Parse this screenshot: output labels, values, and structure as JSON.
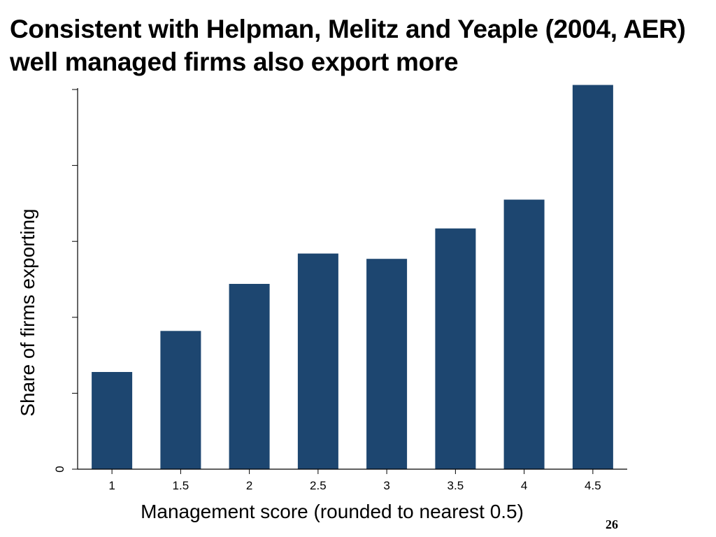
{
  "slide": {
    "title": "Consistent with Helpman, Melitz and Yeaple (2004, AER) well managed firms also export more",
    "page_number": "26"
  },
  "chart_data": {
    "type": "bar",
    "title": "",
    "xlabel": "Management score (rounded to nearest 0.5)",
    "ylabel": "Share of firms exporting",
    "categories": [
      "1",
      "1.5",
      "2",
      "2.5",
      "3",
      "3.5",
      "4",
      "4.5"
    ],
    "values": [
      0.128,
      0.182,
      0.244,
      0.284,
      0.277,
      0.317,
      0.355,
      0.506
    ],
    "ylim": [
      0,
      0.5
    ],
    "yticks": [
      0,
      0.1,
      0.2,
      0.3,
      0.4,
      0.5
    ],
    "ytick_labels": [
      "0",
      "",
      "",
      "",
      "",
      ""
    ],
    "bar_color": "#1d4670",
    "grid": false
  }
}
